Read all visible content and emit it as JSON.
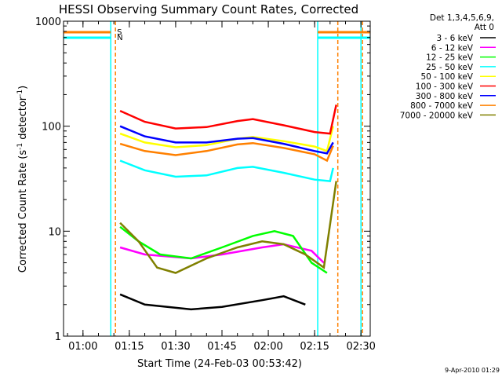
{
  "chart_data": {
    "type": "line",
    "title": "HESSI Observing Summary Count Rates, Corrected",
    "xlabel": "Start Time (24-Feb-03 00:53:42)",
    "ylabel_main": "Corrected Count Rate (s",
    "ylabel_sup1": "-1",
    "ylabel_mid": " detector",
    "ylabel_sup2": "-1",
    "ylabel_end": ")",
    "y_scale": "log",
    "ylim": [
      1,
      1000
    ],
    "xlim": [
      "00:53:42",
      "02:33:00"
    ],
    "x_ticks": [
      "01:00",
      "01:15",
      "01:30",
      "01:45",
      "02:00",
      "02:15",
      "02:30"
    ],
    "y_ticks": [
      "1",
      "10",
      "100",
      "1000"
    ],
    "legend": {
      "placement": "right",
      "header1": "Det 1,3,4,5,6,9,",
      "header2": "Att 0"
    },
    "series": [
      {
        "name": "3 - 6 keV",
        "color": "#000000",
        "points": [
          [
            "01:12",
            2.5
          ],
          [
            "01:20",
            2.0
          ],
          [
            "01:35",
            1.8
          ],
          [
            "01:45",
            1.9
          ],
          [
            "01:58",
            2.2
          ],
          [
            "02:05",
            2.4
          ],
          [
            "02:12",
            2.0
          ]
        ]
      },
      {
        "name": "6 - 12 keV",
        "color": "#ff00ff",
        "points": [
          [
            "01:12",
            7.0
          ],
          [
            "01:20",
            6.0
          ],
          [
            "01:35",
            5.5
          ],
          [
            "01:45",
            6.0
          ],
          [
            "01:58",
            7.0
          ],
          [
            "02:05",
            7.5
          ],
          [
            "02:14",
            6.5
          ],
          [
            "02:18",
            5.0
          ]
        ]
      },
      {
        "name": "12 - 25 keV",
        "color": "#00ff00",
        "points": [
          [
            "01:12",
            11
          ],
          [
            "01:18",
            8
          ],
          [
            "01:25",
            6
          ],
          [
            "01:35",
            5.5
          ],
          [
            "01:45",
            7
          ],
          [
            "01:55",
            9
          ],
          [
            "02:02",
            10
          ],
          [
            "02:08",
            9
          ],
          [
            "02:14",
            5
          ],
          [
            "02:19",
            4
          ]
        ]
      },
      {
        "name": "25 - 50 keV",
        "color": "#00ffff",
        "points": [
          [
            "01:12",
            47
          ],
          [
            "01:20",
            38
          ],
          [
            "01:30",
            33
          ],
          [
            "01:40",
            34
          ],
          [
            "01:50",
            40
          ],
          [
            "01:55",
            41
          ],
          [
            "02:05",
            36
          ],
          [
            "02:15",
            31
          ],
          [
            "02:20",
            30
          ],
          [
            "02:21",
            40
          ]
        ]
      },
      {
        "name": "50 - 100 keV",
        "color": "#ffff00",
        "points": [
          [
            "01:12",
            85
          ],
          [
            "01:20",
            70
          ],
          [
            "01:30",
            63
          ],
          [
            "01:40",
            66
          ],
          [
            "01:50",
            76
          ],
          [
            "01:55",
            79
          ],
          [
            "02:05",
            72
          ],
          [
            "02:15",
            64
          ],
          [
            "02:19",
            58
          ],
          [
            "02:21",
            100
          ]
        ]
      },
      {
        "name": "100 - 300 keV",
        "color": "#ff0000",
        "points": [
          [
            "01:12",
            140
          ],
          [
            "01:20",
            110
          ],
          [
            "01:30",
            95
          ],
          [
            "01:40",
            98
          ],
          [
            "01:50",
            112
          ],
          [
            "01:55",
            117
          ],
          [
            "02:05",
            102
          ],
          [
            "02:15",
            88
          ],
          [
            "02:20",
            85
          ],
          [
            "02:22",
            160
          ]
        ]
      },
      {
        "name": "300 - 800 keV",
        "color": "#0000ff",
        "points": [
          [
            "01:12",
            100
          ],
          [
            "01:20",
            80
          ],
          [
            "01:30",
            70
          ],
          [
            "01:40",
            70
          ],
          [
            "01:50",
            76
          ],
          [
            "01:55",
            77
          ],
          [
            "02:05",
            68
          ],
          [
            "02:15",
            58
          ],
          [
            "02:19",
            55
          ],
          [
            "02:21",
            70
          ]
        ]
      },
      {
        "name": "800 - 7000 keV",
        "color": "#ff8000",
        "points": [
          [
            "01:12",
            68
          ],
          [
            "01:20",
            58
          ],
          [
            "01:30",
            53
          ],
          [
            "01:40",
            58
          ],
          [
            "01:50",
            67
          ],
          [
            "01:55",
            69
          ],
          [
            "02:05",
            62
          ],
          [
            "02:15",
            54
          ],
          [
            "02:19",
            47
          ],
          [
            "02:21",
            65
          ]
        ]
      },
      {
        "name": "7000 - 20000 keV",
        "color": "#808000",
        "points": [
          [
            "01:12",
            12
          ],
          [
            "01:18",
            8
          ],
          [
            "01:24",
            4.5
          ],
          [
            "01:30",
            4
          ],
          [
            "01:40",
            5.5
          ],
          [
            "01:50",
            7
          ],
          [
            "01:58",
            8
          ],
          [
            "02:05",
            7.5
          ],
          [
            "02:12",
            6
          ],
          [
            "02:18",
            4.5
          ],
          [
            "02:22",
            30
          ]
        ]
      }
    ],
    "annotations": [
      {
        "label": "S",
        "color": "#ff8000"
      },
      {
        "label": "N",
        "color": "#00ffff"
      }
    ],
    "vertical_lines": [
      {
        "x": "01:09",
        "color": "#00ffff",
        "style": "solid"
      },
      {
        "x": "01:10",
        "color": "#ff8000",
        "style": "dashed"
      },
      {
        "x": "02:16",
        "color": "#00ffff",
        "style": "solid"
      },
      {
        "x": "02:22",
        "color": "#ff8000",
        "style": "dashed"
      },
      {
        "x": "02:30",
        "color": "#00ffff",
        "style": "solid"
      },
      {
        "x": "02:30",
        "color": "#ff8000",
        "style": "dashed"
      }
    ],
    "footer": "9-Apr-2010 01:29"
  }
}
